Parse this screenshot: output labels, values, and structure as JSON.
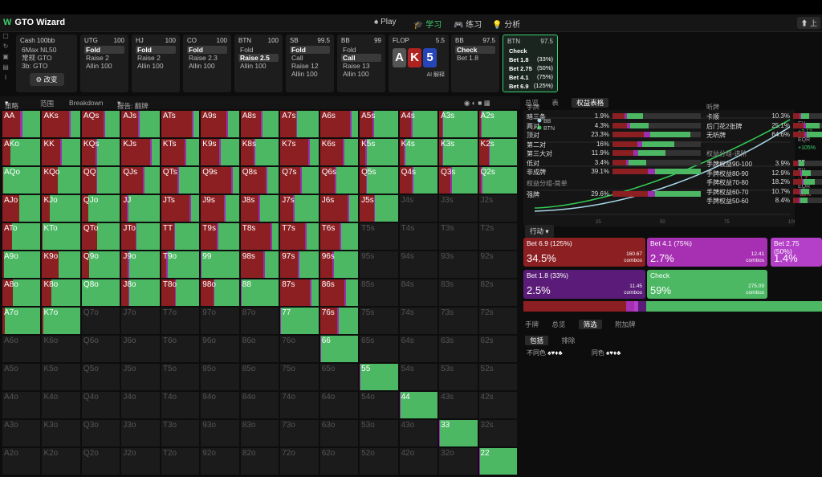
{
  "app": {
    "title": "GTO Wizard",
    "language": "上",
    "nav": [
      {
        "label": "Play",
        "icon": "spade-icon"
      },
      {
        "label": "学习",
        "icon": "graduation-icon",
        "active": true
      },
      {
        "label": "练习",
        "icon": "gamepad-icon"
      },
      {
        "label": "分析",
        "icon": "bulb-icon"
      }
    ]
  },
  "setup": {
    "title": "Cash",
    "stake": "100bb",
    "lines": [
      "6Max NL50",
      "常规 GTO",
      "3b: GTO"
    ],
    "change": "改变"
  },
  "positions": [
    {
      "pos": "UTG",
      "stack": "100",
      "actions": [
        "Fold",
        "Raise 2",
        "Allin 100"
      ],
      "sel": 0
    },
    {
      "pos": "HJ",
      "stack": "100",
      "actions": [
        "Fold",
        "Raise 2",
        "Allin 100"
      ],
      "sel": 0
    },
    {
      "pos": "CO",
      "stack": "100",
      "actions": [
        "Fold",
        "Raise 2.3",
        "Allin 100"
      ],
      "sel": 0
    },
    {
      "pos": "BTN",
      "stack": "100",
      "actions": [
        "Fold",
        "Raise 2.5",
        "Allin 100"
      ],
      "sel": 1
    },
    {
      "pos": "SB",
      "stack": "99.5",
      "actions": [
        "Fold",
        "Call",
        "Raise 12",
        "Allin 100"
      ],
      "sel": 0
    },
    {
      "pos": "BB",
      "stack": "99",
      "actions": [
        "Fold",
        "Call",
        "Raise 13",
        "Allin 100"
      ],
      "sel": 1
    }
  ],
  "flop": {
    "label": "FLOP",
    "pot": "5.5",
    "cards": [
      "A",
      "K",
      "5"
    ],
    "ai": "AI 解释"
  },
  "bb_node": {
    "pos": "BB",
    "stack": "97.5",
    "actions": [
      "Check",
      "Bet 1.8"
    ]
  },
  "btn_node": {
    "pos": "BTN",
    "stack": "97.5",
    "actions": [
      {
        "l": "Check",
        "p": ""
      },
      {
        "l": "Bet 1.8",
        "p": "(33%)"
      },
      {
        "l": "Bet 2.75",
        "p": "(50%)"
      },
      {
        "l": "Bet 4.1",
        "p": "(75%)"
      },
      {
        "l": "Bet 6.9",
        "p": "(125%)"
      }
    ]
  },
  "subbar": {
    "strategy": "策略",
    "range": "范围",
    "breakdown": "Breakdown",
    "report": "报告: 翻牌"
  },
  "grid_labels": [
    [
      "AA",
      "AKs",
      "AQs",
      "AJs",
      "ATs",
      "A9s",
      "A8s",
      "A7s",
      "A6s",
      "A5s",
      "A4s",
      "A3s",
      "A2s"
    ],
    [
      "AKo",
      "KK",
      "KQs",
      "KJs",
      "KTs",
      "K9s",
      "K8s",
      "K7s",
      "K6s",
      "K5s",
      "K4s",
      "K3s",
      "K2s"
    ],
    [
      "AQo",
      "KQo",
      "QQ",
      "QJs",
      "QTs",
      "Q9s",
      "Q8s",
      "Q7s",
      "Q6s",
      "Q5s",
      "Q4s",
      "Q3s",
      "Q2s"
    ],
    [
      "AJo",
      "KJo",
      "QJo",
      "JJ",
      "JTs",
      "J9s",
      "J8s",
      "J7s",
      "J6s",
      "J5s",
      "J4s",
      "J3s",
      "J2s"
    ],
    [
      "ATo",
      "KTo",
      "QTo",
      "JTo",
      "TT",
      "T9s",
      "T8s",
      "T7s",
      "T6s",
      "T5s",
      "T4s",
      "T3s",
      "T2s"
    ],
    [
      "A9o",
      "K9o",
      "Q9o",
      "J9o",
      "T9o",
      "99",
      "98s",
      "97s",
      "96s",
      "95s",
      "94s",
      "93s",
      "92s"
    ],
    [
      "A8o",
      "K8o",
      "Q8o",
      "J8o",
      "T8o",
      "98o",
      "88",
      "87s",
      "86s",
      "85s",
      "84s",
      "83s",
      "82s"
    ],
    [
      "A7o",
      "K7o",
      "Q7o",
      "J7o",
      "T7o",
      "97o",
      "87o",
      "77",
      "76s",
      "75s",
      "74s",
      "73s",
      "72s"
    ],
    [
      "A6o",
      "K6o",
      "Q6o",
      "J6o",
      "T6o",
      "96o",
      "86o",
      "76o",
      "66",
      "65s",
      "64s",
      "63s",
      "62s"
    ],
    [
      "A5o",
      "K5o",
      "Q5o",
      "J5o",
      "T5o",
      "95o",
      "85o",
      "75o",
      "65o",
      "55",
      "54s",
      "53s",
      "52s"
    ],
    [
      "A4o",
      "K4o",
      "Q4o",
      "J4o",
      "T4o",
      "94o",
      "84o",
      "74o",
      "64o",
      "54o",
      "44",
      "43s",
      "42s"
    ],
    [
      "A3o",
      "K3o",
      "Q3o",
      "J3o",
      "T3o",
      "93o",
      "83o",
      "73o",
      "63o",
      "53o",
      "43o",
      "33",
      "32s"
    ],
    [
      "A2o",
      "K2o",
      "Q2o",
      "J2o",
      "T2o",
      "92o",
      "82o",
      "72o",
      "62o",
      "52o",
      "42o",
      "32o",
      "22"
    ]
  ],
  "right_tabs": [
    "总览",
    "表",
    "权益表格"
  ],
  "equity_chart": {
    "legend": [
      "BB",
      "BTN"
    ],
    "colors": {
      "BB": "#a8d8e8",
      "BTN": "#33cc55"
    },
    "x_ticks": [
      "25",
      "50",
      "75",
      "100"
    ]
  },
  "side_stats": {
    "btn": "BTN",
    "ev_l": "EV",
    "ev": "+3.17",
    "eqr_l": "EQR",
    "eqr": "+105%",
    "bb": "BB",
    "bb_ev": "-1.7",
    "bb_eqr": "-88%"
  },
  "action_label": "行动",
  "actions": [
    {
      "name": "Bet 6.9",
      "pct_l": "(125%)",
      "pct": "34.5%",
      "combos": "160.67",
      "color": "#8c1f22"
    },
    {
      "name": "Bet 4.1",
      "pct_l": "(75%)",
      "pct": "2.7%",
      "combos": "12.41",
      "color": "#a62fb2"
    },
    {
      "name": "Bet 2.75",
      "pct_l": "(50%)",
      "pct": "1.4%",
      "combos": "",
      "color": "#b43fc8"
    },
    {
      "name": "Bet 1.8",
      "pct_l": "(33%)",
      "pct": "2.5%",
      "combos": "11.45",
      "color": "#5a1c78"
    },
    {
      "name": "Check",
      "pct_l": "",
      "pct": "59%",
      "combos": "275.09",
      "color": "#4cb863"
    }
  ],
  "combos_label": "combos",
  "bottom_tabs": [
    "手牌",
    "总览",
    "筛选",
    "附加牌"
  ],
  "filter": {
    "include": "包括",
    "exclude": "排除",
    "suits_l": "不同色",
    "suits2_l": "同色"
  },
  "hands_section": {
    "title": "手牌",
    "rows": [
      {
        "n": "暗三条",
        "v": "1.9%"
      },
      {
        "n": "两对",
        "v": "4.3%"
      },
      {
        "n": "顶对",
        "v": "23.3%"
      },
      {
        "n": "第二对",
        "v": "16%"
      },
      {
        "n": "第三大对",
        "v": "11.9%"
      },
      {
        "n": "低对",
        "v": "3.4%"
      },
      {
        "n": "非成牌",
        "v": "39.1%"
      }
    ]
  },
  "draw_section": {
    "title": "听牌",
    "rows": [
      {
        "n": "卡顺",
        "v": "10.3%"
      },
      {
        "n": "后门花2张牌",
        "v": "25.1%"
      },
      {
        "n": "无听牌",
        "v": "64.6%"
      }
    ]
  },
  "eq_section": {
    "title": "权益分组-进阶",
    "rows": [
      {
        "n": "手牌权益90-100",
        "v": "3.9%"
      },
      {
        "n": "手牌权益80-90",
        "v": "12.9%"
      },
      {
        "n": "手牌权益70-80",
        "v": "18.2%"
      },
      {
        "n": "手牌权益60-70",
        "v": "10.7%"
      },
      {
        "n": "手牌权益50-60",
        "v": "8.4%"
      }
    ]
  },
  "simple_eq": {
    "title": "权益分组-简单",
    "row": {
      "n": "强牌",
      "v": "29.6%"
    }
  }
}
